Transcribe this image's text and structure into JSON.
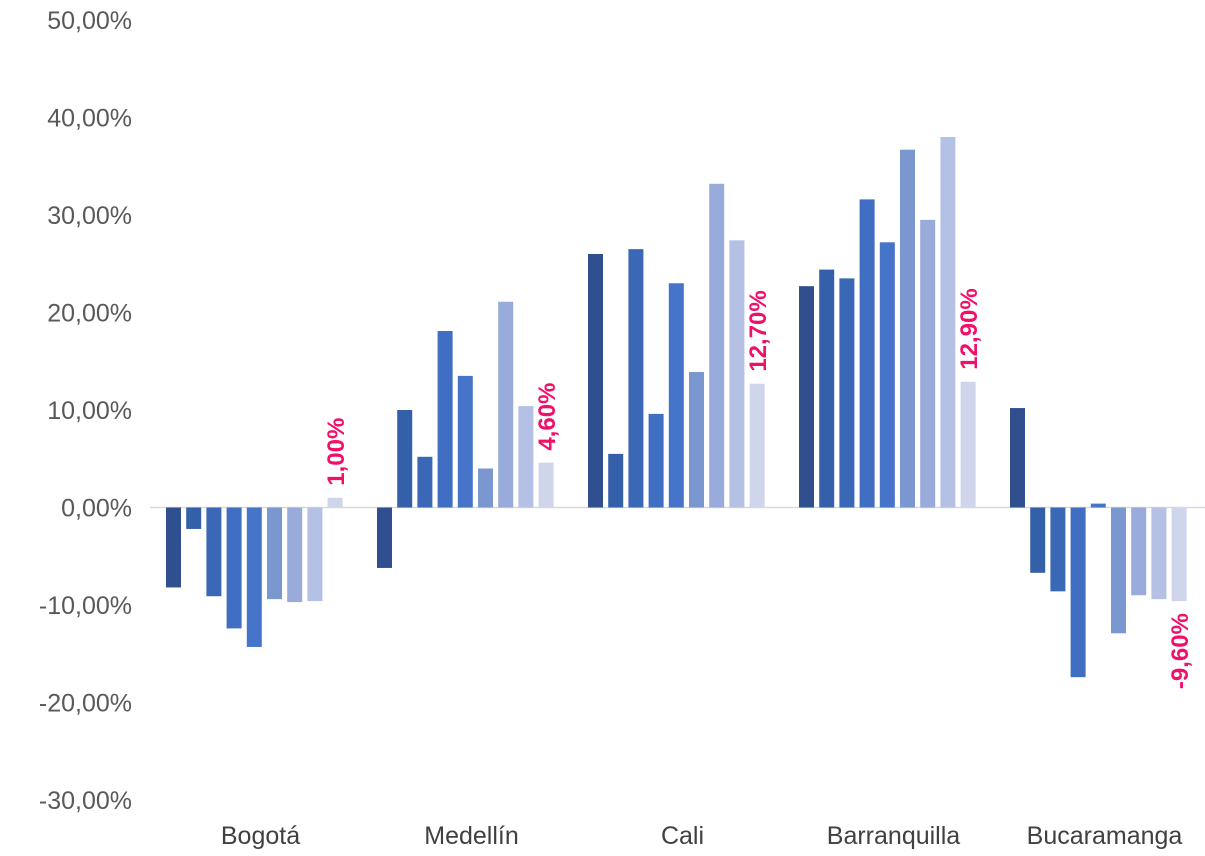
{
  "chart_data": {
    "type": "bar",
    "title": "",
    "xlabel": "",
    "ylabel": "",
    "ylim": [
      -30,
      50
    ],
    "yticks": [
      50,
      40,
      30,
      20,
      10,
      0,
      -10,
      -20,
      -30
    ],
    "ytick_labels": [
      "50,00%",
      "40,00%",
      "30,00%",
      "20,00%",
      "10,00%",
      "0,00%",
      "-10,00%",
      "-20,00%",
      "-30,00%"
    ],
    "categories": [
      "Bogotá",
      "Medellín",
      "Cali",
      "Barranquilla",
      "Bucaramanga"
    ],
    "series": [
      {
        "values": [
          -8.2,
          -6.2,
          26.0,
          22.7,
          10.2
        ]
      },
      {
        "values": [
          -2.2,
          10.0,
          5.5,
          24.4,
          -6.7
        ]
      },
      {
        "values": [
          -9.1,
          5.2,
          26.5,
          23.5,
          -8.6
        ]
      },
      {
        "values": [
          -12.4,
          18.1,
          9.6,
          31.6,
          -17.4
        ]
      },
      {
        "values": [
          -14.3,
          13.5,
          23.0,
          27.2,
          0.4
        ]
      },
      {
        "values": [
          -9.4,
          4.0,
          13.9,
          36.7,
          -12.9
        ]
      },
      {
        "values": [
          -9.7,
          21.1,
          33.2,
          29.5,
          -9.0
        ]
      },
      {
        "values": [
          -9.6,
          10.4,
          27.4,
          38.0,
          -9.4
        ]
      },
      {
        "values": [
          1.0,
          4.6,
          12.7,
          12.9,
          -9.6
        ]
      }
    ],
    "series_colors": [
      "#2f4f8f",
      "#3460aa",
      "#3a67b6",
      "#3f6ec2",
      "#4674c8",
      "#7a97cf",
      "#98abda",
      "#b4c1e4",
      "#cfd6ec"
    ],
    "highlight": {
      "series_index": 8,
      "labels": [
        "1,00%",
        "4,60%",
        "12,70%",
        "12,90%",
        "-9,60%"
      ],
      "color": "#f0106a"
    },
    "grid": false,
    "legend": "none"
  }
}
